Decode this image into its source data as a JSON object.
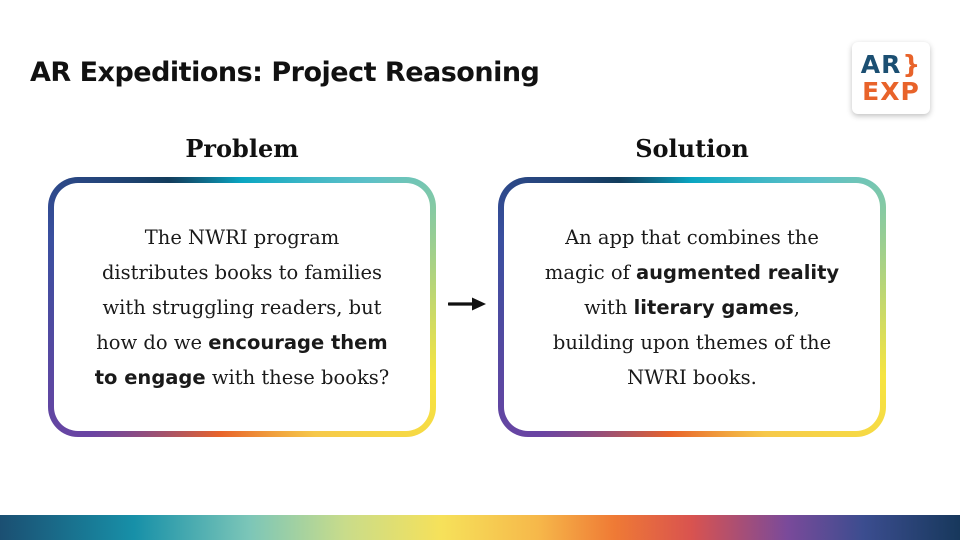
{
  "title": "AR Expeditions: Project Reasoning",
  "logo": {
    "line1": "AR",
    "bracket": "}",
    "line2": "EXP",
    "colors": {
      "blue": "#1b4f72",
      "orange": "#e8632a"
    }
  },
  "problem": {
    "heading": "Problem",
    "lines": [
      [
        {
          "t": "The NWRI program",
          "b": false
        }
      ],
      [
        {
          "t": "distributes books to families",
          "b": false
        }
      ],
      [
        {
          "t": "with struggling readers, but",
          "b": false
        }
      ],
      [
        {
          "t": "how do we ",
          "b": false
        },
        {
          "t": "encourage them",
          "b": true
        }
      ],
      [
        {
          "t": "to engage",
          "b": true
        },
        {
          "t": " with these books?",
          "b": false
        }
      ]
    ]
  },
  "solution": {
    "heading": "Solution",
    "lines": [
      [
        {
          "t": "An app that combines the",
          "b": false
        }
      ],
      [
        {
          "t": "magic of ",
          "b": false
        },
        {
          "t": "augmented reality",
          "b": true
        }
      ],
      [
        {
          "t": "with ",
          "b": false
        },
        {
          "t": "literary games",
          "b": true
        },
        {
          "t": ",",
          "b": false
        }
      ],
      [
        {
          "t": "building upon themes of the",
          "b": false
        }
      ],
      [
        {
          "t": "NWRI books.",
          "b": false
        }
      ]
    ]
  },
  "arrow_icon": "arrow-right-icon"
}
